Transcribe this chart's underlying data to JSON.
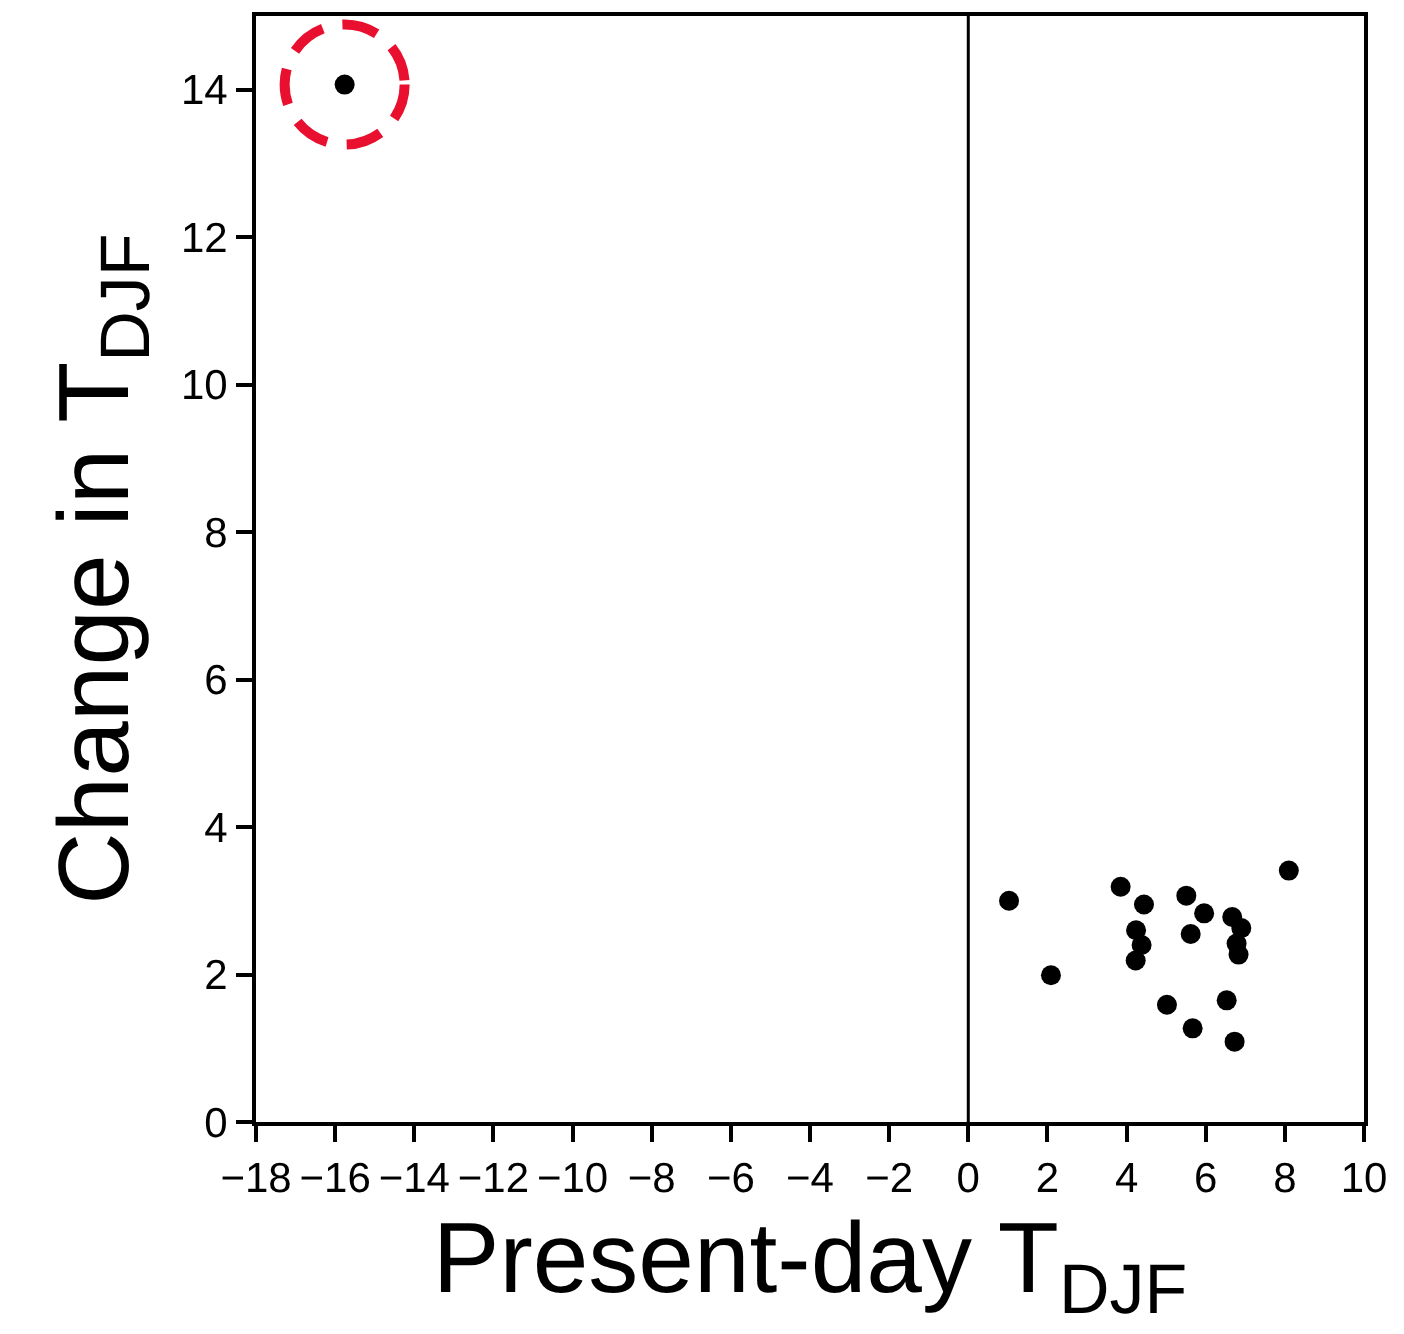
{
  "chart_data": {
    "type": "scatter",
    "xlabel": "Present-day T$_{DJF}$",
    "ylabel": "Change in T$_{DJF}$",
    "x": [
      -15.76,
      1.03,
      2.09,
      3.85,
      4.44,
      4.24,
      4.38,
      4.23,
      5.51,
      5.96,
      5.62,
      6.67,
      6.9,
      6.78,
      6.83,
      8.1,
      5.02,
      6.41,
      6.53,
      5.67,
      6.73
    ],
    "series": [
      {
        "color": "#000000",
        "values": [
          14.07,
          3.0,
          1.99,
          3.19,
          2.95,
          2.6,
          2.4,
          2.19,
          3.07,
          2.83,
          2.55,
          2.78,
          2.63,
          2.42,
          2.27,
          3.41,
          1.59,
          null,
          1.65,
          1.27,
          1.09
        ]
      }
    ],
    "xlim": [
      -18,
      10
    ],
    "ylim": [
      0,
      15
    ],
    "xticks": [
      {
        "value": -18,
        "label": "−18"
      },
      {
        "value": -16,
        "label": "−16"
      },
      {
        "value": -14,
        "label": "−14"
      },
      {
        "value": -12,
        "label": "−12"
      },
      {
        "value": -10,
        "label": "−10"
      },
      {
        "value": -8,
        "label": "−8"
      },
      {
        "value": -6,
        "label": "−6"
      },
      {
        "value": -4,
        "label": "−4"
      },
      {
        "value": -2,
        "label": "−2"
      },
      0,
      2,
      4,
      6,
      8,
      10
    ],
    "yticks": [
      0,
      2,
      4,
      6,
      8,
      10,
      12,
      14
    ],
    "ref_lines": [
      {
        "axis": "x",
        "value": 0,
        "color": "#000000",
        "line_style": "solid"
      }
    ],
    "grid": false,
    "marker": "circle"
  }
}
